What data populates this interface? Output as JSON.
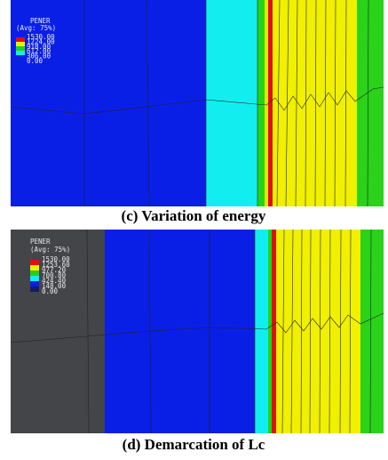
{
  "panels": [
    {
      "legend_title": "PENER",
      "legend_subtitle": "(Avg: 75%)",
      "legend_labels": [
        "1530.00",
        "1224.00",
        "918.00",
        "612.00",
        "306.00",
        "0.00"
      ],
      "caption": "(c)    Variation of energy"
    },
    {
      "legend_title": "PENER",
      "legend_subtitle": "(Avg: 75%)",
      "legend_labels": [
        "1530.00",
        "1253.60",
        "977.20",
        "700.80",
        "424.40",
        "148.00",
        "0.00"
      ],
      "caption": "(d)    Demarcation of Lc"
    }
  ]
}
